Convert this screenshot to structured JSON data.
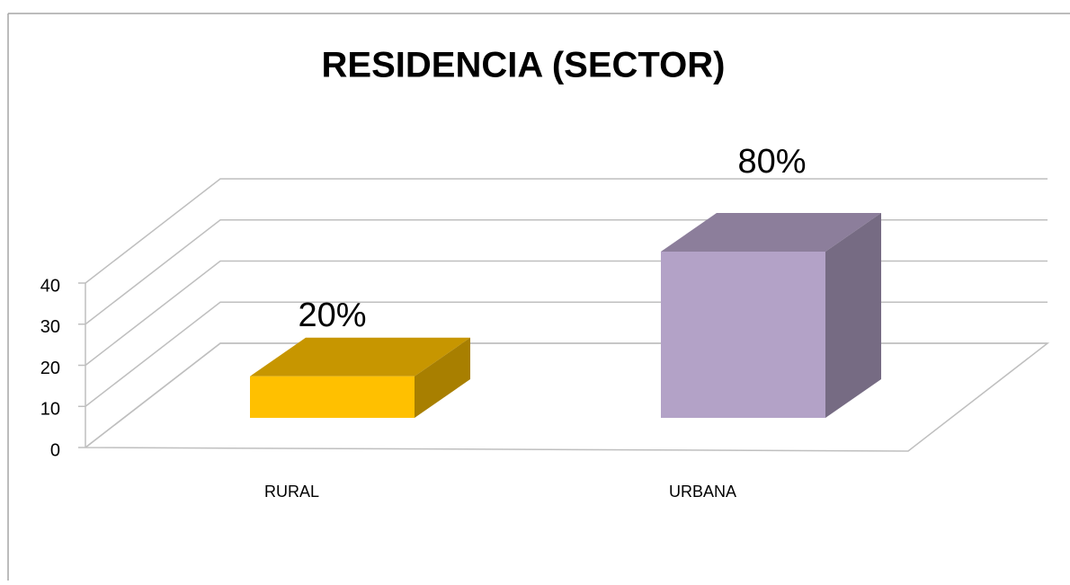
{
  "chart_data": {
    "type": "bar3d",
    "title": "RESIDENCIA  (SECTOR)",
    "categories": [
      "RURAL",
      "URBANA"
    ],
    "values": [
      10,
      40
    ],
    "value_labels": [
      "20%",
      "80%"
    ],
    "colors": [
      "#ffc000",
      "#b3a2c7"
    ],
    "ylim": [
      0,
      40
    ],
    "yticks": [
      0,
      10,
      20,
      30,
      40
    ],
    "grid": true
  }
}
